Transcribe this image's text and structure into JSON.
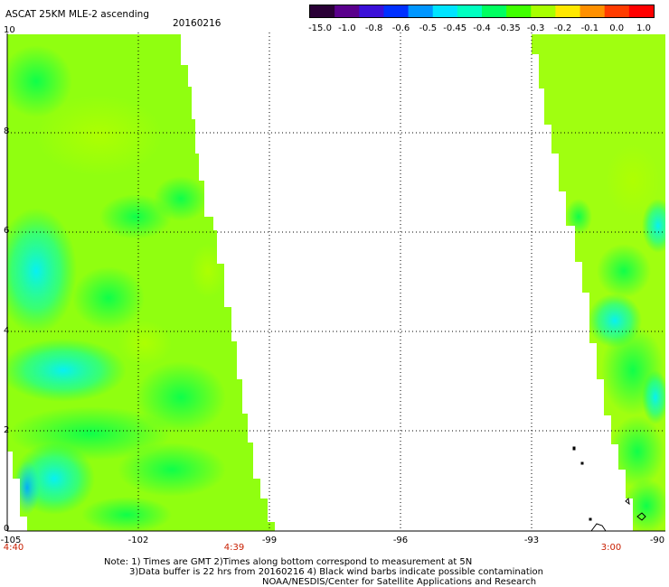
{
  "header": {
    "title": "ASCAT 25KM MLE-2 ascending",
    "date": "20160216"
  },
  "colorbar": {
    "tick_labels": [
      "-15.0",
      "-1.0",
      "-0.8",
      "-0.6",
      "-0.5",
      "-0.45",
      "-0.4",
      "-0.35",
      "-0.3",
      "-0.2",
      "-0.1",
      "0.0",
      "1.0"
    ],
    "colors": [
      "#2a0036",
      "#5a008c",
      "#3b10d8",
      "#0030ff",
      "#0096ff",
      "#00e4ff",
      "#00ffc0",
      "#00ff60",
      "#40ff00",
      "#a8ff00",
      "#ffe800",
      "#ff9000",
      "#ff3c00",
      "#ff0000"
    ]
  },
  "map": {
    "lon_ticks": [
      "-105",
      "-102",
      "-99",
      "-96",
      "-93",
      "-90"
    ],
    "lat_ticks": [
      "0",
      "2",
      "4",
      "6",
      "8",
      "10"
    ],
    "time_labels": [
      {
        "text": "4:40",
        "lon": -105
      },
      {
        "text": "4:39",
        "lon": -100.2
      },
      {
        "text": "3:00",
        "lon": -91.3
      }
    ],
    "lon_range": [
      -105,
      -90
    ],
    "lat_range": [
      0,
      10
    ],
    "grid": "dotted"
  },
  "footer": {
    "line1": "Note: 1) Times are GMT 2)Times along bottom correspond to measurement at 5N",
    "line2": "3)Data buffer is 22 hrs from 20160216 4) Black wind barbs indicate possible contamination",
    "line3": "NOAA/NESDIS/Center for Satellite Applications and Research"
  }
}
